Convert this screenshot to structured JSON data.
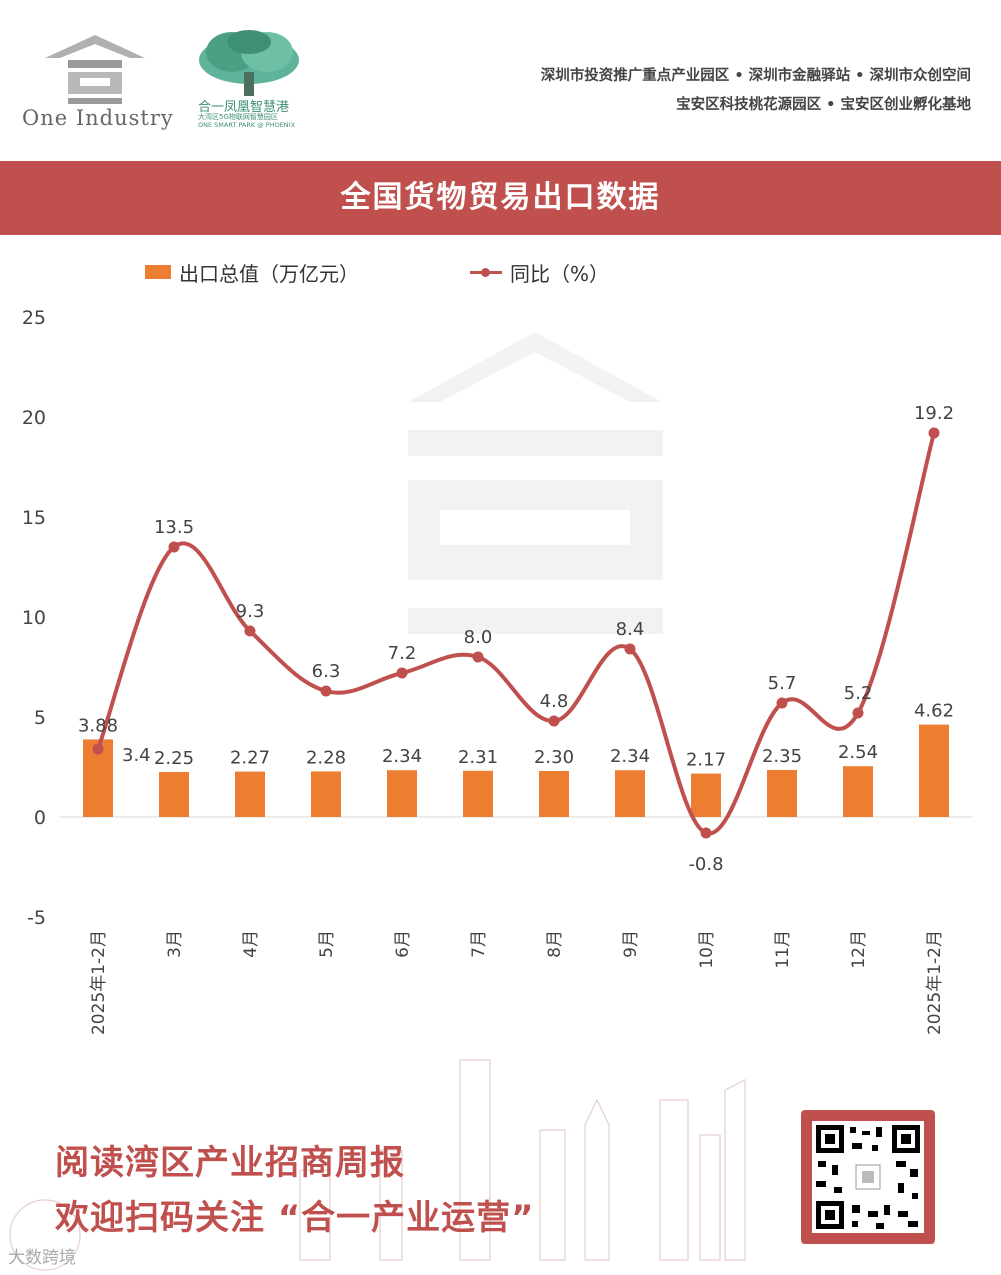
{
  "header": {
    "logo_text": "One Industry",
    "park_name_cn": "合一凤凰智慧港",
    "park_sub_cn": "大湾区5G物联网智慧园区",
    "park_sub_en": "ONE SMART PARK @ PHOENIX",
    "tagline_1": "深圳市投资推广重点产业园区 • 深圳市金融驿站 • 深圳市众创空间",
    "tagline_2": "宝安区科技桃花源园区 • 宝安区创业孵化基地"
  },
  "title": "全国货物贸易出口数据",
  "legend": {
    "bar_label": "出口总值（万亿元）",
    "line_label": "同比（%）"
  },
  "colors": {
    "bar": "#ed7d31",
    "line": "#c0504d",
    "band": "#c0504d"
  },
  "chart_data": {
    "type": "bar",
    "categories": [
      "2025年1-2月",
      "3月",
      "4月",
      "5月",
      "6月",
      "7月",
      "8月",
      "9月",
      "10月",
      "11月",
      "12月",
      "2025年1-2月"
    ],
    "series": [
      {
        "name": "出口总值（万亿元）",
        "type": "bar",
        "values": [
          3.88,
          2.25,
          2.27,
          2.28,
          2.34,
          2.31,
          2.3,
          2.34,
          2.17,
          2.35,
          2.54,
          4.62
        ],
        "labels": [
          "3.88",
          "2.25",
          "2.27",
          "2.28",
          "2.34",
          "2.31",
          "2.30",
          "2.34",
          "2.17",
          "2.35",
          "2.54",
          "4.62"
        ]
      },
      {
        "name": "同比（%）",
        "type": "line",
        "smooth": true,
        "values": [
          3.4,
          13.5,
          9.3,
          6.3,
          7.2,
          8.0,
          4.8,
          8.4,
          -0.8,
          5.7,
          5.2,
          19.2
        ],
        "labels": [
          "3.4",
          "13.5",
          "9.3",
          "6.3",
          "7.2",
          "8.0",
          "4.8",
          "8.4",
          "-0.8",
          "5.7",
          "5.2",
          "19.2"
        ]
      }
    ],
    "ylim": [
      -5,
      25
    ],
    "yticks": [
      "25",
      "20",
      "15",
      "10",
      "5",
      "0",
      "-5"
    ],
    "legend_position": "top",
    "grid": false
  },
  "footer": {
    "line1": "阅读湾区产业招商周报",
    "line2": "欢迎扫码关注 “合一产业运营”",
    "watermark": "大数跨境"
  }
}
